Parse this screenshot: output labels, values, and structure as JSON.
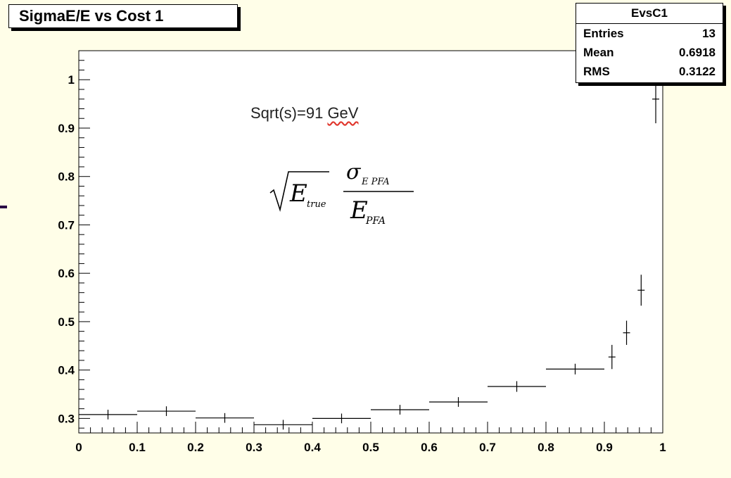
{
  "title": "SigmaE/E vs Cost 1",
  "stats": {
    "name": "EvsC1",
    "rows": [
      {
        "label": "Entries",
        "value": "13"
      },
      {
        "label": "Mean",
        "value": "0.6918"
      },
      {
        "label": "RMS",
        "value": "0.3122"
      }
    ]
  },
  "annotation": {
    "prefix": "Sqrt(s)=91 ",
    "unit": "GeV"
  },
  "formula": {
    "sqrt_var": "E",
    "sqrt_sub": "true",
    "num_var": "σ",
    "num_sub": "E PFA",
    "den_var": "E",
    "den_sub": "PFA"
  },
  "colors": {
    "background": "#fffee8",
    "plot_bg": "#ffffff",
    "squiggle": "#e0352b"
  },
  "chart_data": {
    "type": "scatter",
    "title": "SigmaE/E vs Cost 1",
    "xlim": [
      0,
      1
    ],
    "ylim": [
      0.27,
      1.06
    ],
    "x_ticks": [
      "0",
      "0.1",
      "0.2",
      "0.3",
      "0.4",
      "0.5",
      "0.6",
      "0.7",
      "0.8",
      "0.9",
      "1"
    ],
    "y_ticks": [
      "0.3",
      "0.4",
      "0.5",
      "0.6",
      "0.7",
      "0.8",
      "0.9",
      "1"
    ],
    "grid": false,
    "legend": "none",
    "points": [
      {
        "x": 0.05,
        "xerr": 0.05,
        "y": 0.308,
        "yerr": 0.01
      },
      {
        "x": 0.15,
        "xerr": 0.05,
        "y": 0.315,
        "yerr": 0.01
      },
      {
        "x": 0.25,
        "xerr": 0.05,
        "y": 0.301,
        "yerr": 0.01
      },
      {
        "x": 0.35,
        "xerr": 0.05,
        "y": 0.287,
        "yerr": 0.01
      },
      {
        "x": 0.45,
        "xerr": 0.05,
        "y": 0.3,
        "yerr": 0.01
      },
      {
        "x": 0.55,
        "xerr": 0.05,
        "y": 0.318,
        "yerr": 0.01
      },
      {
        "x": 0.65,
        "xerr": 0.05,
        "y": 0.334,
        "yerr": 0.01
      },
      {
        "x": 0.75,
        "xerr": 0.05,
        "y": 0.366,
        "yerr": 0.011
      },
      {
        "x": 0.85,
        "xerr": 0.05,
        "y": 0.402,
        "yerr": 0.011
      },
      {
        "x": 0.913,
        "xerr": 0.006,
        "y": 0.427,
        "yerr": 0.025
      },
      {
        "x": 0.938,
        "xerr": 0.006,
        "y": 0.477,
        "yerr": 0.025
      },
      {
        "x": 0.963,
        "xerr": 0.006,
        "y": 0.565,
        "yerr": 0.032
      },
      {
        "x": 0.988,
        "xerr": 0.006,
        "y": 0.96,
        "yerr": 0.05
      }
    ]
  }
}
